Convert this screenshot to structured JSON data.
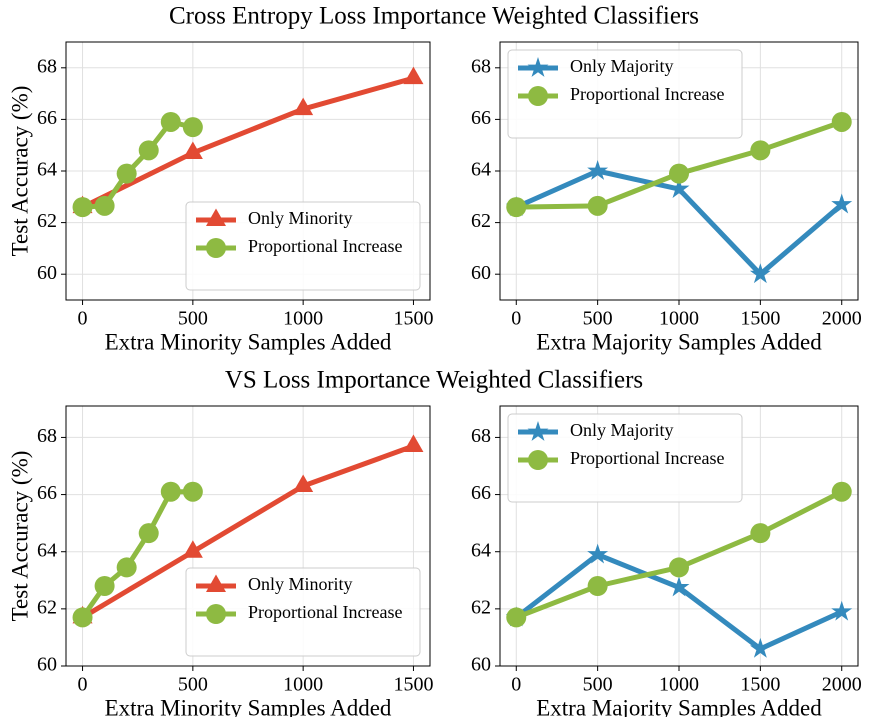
{
  "chart_data": [
    {
      "type": "line",
      "title": "Cross Entropy Loss Importance Weighted Classifiers",
      "xlabel": "Extra Minority Samples Added",
      "ylabel": "Test Accuracy (%)",
      "xlim": [
        -75,
        1575
      ],
      "xticks": [
        0,
        500,
        1000,
        1500
      ],
      "ylim": [
        59,
        69
      ],
      "yticks": [
        60,
        62,
        64,
        66,
        68
      ],
      "grid": true,
      "legend": "lower right",
      "series": [
        {
          "name": "Only Minority",
          "color": "#e24a33",
          "marker": "triangle",
          "x": [
            0,
            500,
            1000,
            1500
          ],
          "values": [
            62.6,
            64.7,
            66.4,
            67.6
          ]
        },
        {
          "name": "Proportional Increase",
          "color": "#8eba42",
          "marker": "circle",
          "x": [
            0,
            100,
            200,
            300,
            400,
            500
          ],
          "values": [
            62.6,
            62.65,
            63.9,
            64.8,
            65.9,
            65.7
          ]
        }
      ]
    },
    {
      "type": "line",
      "xlabel": "Extra Majority Samples Added",
      "xlim": [
        -100,
        2100
      ],
      "xticks": [
        0,
        500,
        1000,
        1500,
        2000
      ],
      "ylim": [
        59,
        69
      ],
      "yticks": [
        60,
        62,
        64,
        66,
        68
      ],
      "grid": true,
      "legend": "upper left",
      "series": [
        {
          "name": "Only Majority",
          "color": "#348abd",
          "marker": "star",
          "x": [
            0,
            500,
            1000,
            1500,
            2000
          ],
          "values": [
            62.6,
            64.0,
            63.3,
            60.0,
            62.7
          ]
        },
        {
          "name": "Proportional Increase",
          "color": "#8eba42",
          "marker": "circle",
          "x": [
            0,
            500,
            1000,
            1500,
            2000
          ],
          "values": [
            62.6,
            62.65,
            63.9,
            64.8,
            65.9
          ]
        }
      ]
    },
    {
      "type": "line",
      "title": "VS Loss Importance Weighted Classifiers",
      "xlabel": "Extra Minority Samples Added",
      "ylabel": "Test Accuracy (%)",
      "xlim": [
        -75,
        1575
      ],
      "xticks": [
        0,
        500,
        1000,
        1500
      ],
      "ylim": [
        60,
        69.1
      ],
      "yticks": [
        60,
        62,
        64,
        66,
        68
      ],
      "grid": true,
      "legend": "lower right",
      "series": [
        {
          "name": "Only Minority",
          "color": "#e24a33",
          "marker": "triangle",
          "x": [
            0,
            500,
            1000,
            1500
          ],
          "values": [
            61.7,
            64.0,
            66.3,
            67.7
          ]
        },
        {
          "name": "Proportional Increase",
          "color": "#8eba42",
          "marker": "circle",
          "x": [
            0,
            100,
            200,
            300,
            400,
            500
          ],
          "values": [
            61.7,
            62.8,
            63.45,
            64.65,
            66.1,
            66.1
          ]
        }
      ]
    },
    {
      "type": "line",
      "xlabel": "Extra Majority Samples Added",
      "xlim": [
        -100,
        2100
      ],
      "xticks": [
        0,
        500,
        1000,
        1500,
        2000
      ],
      "ylim": [
        60,
        69.1
      ],
      "yticks": [
        60,
        62,
        64,
        66,
        68
      ],
      "grid": true,
      "legend": "upper left",
      "series": [
        {
          "name": "Only Majority",
          "color": "#348abd",
          "marker": "star",
          "x": [
            0,
            500,
            1000,
            1500,
            2000
          ],
          "values": [
            61.7,
            63.9,
            62.75,
            60.6,
            61.9
          ]
        },
        {
          "name": "Proportional Increase",
          "color": "#8eba42",
          "marker": "circle",
          "x": [
            0,
            500,
            1000,
            1500,
            2000
          ],
          "values": [
            61.7,
            62.8,
            63.45,
            64.65,
            66.1
          ]
        }
      ]
    }
  ]
}
